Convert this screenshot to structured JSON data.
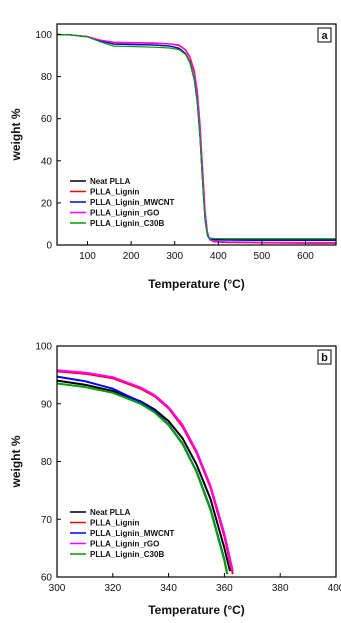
{
  "chart_data": [
    {
      "type": "line",
      "panel_label": "a",
      "xlabel": "Temperature (°C)",
      "ylabel": "weight %",
      "xlim": [
        30,
        670
      ],
      "ylim": [
        0,
        105
      ],
      "xticks": [
        100,
        200,
        300,
        400,
        500,
        600
      ],
      "yticks": [
        0,
        20,
        40,
        60,
        80,
        100
      ],
      "legend_position": "bottom-left",
      "series": [
        {
          "name": "Neat PLLA",
          "color": "#000000",
          "x": [
            30,
            60,
            100,
            130,
            160,
            200,
            250,
            290,
            310,
            325,
            335,
            345,
            352,
            358,
            362,
            366,
            370,
            375,
            380,
            390,
            420,
            500,
            600,
            670
          ],
          "y": [
            100,
            99.8,
            99,
            97,
            95.5,
            95.3,
            95,
            94.5,
            93.5,
            91,
            87,
            79,
            68,
            52,
            38,
            24,
            12,
            5,
            3,
            2.6,
            2.5,
            2.5,
            2.5,
            2.5
          ]
        },
        {
          "name": "PLLA_Lignin",
          "color": "#ff0000",
          "x": [
            30,
            60,
            100,
            130,
            160,
            200,
            250,
            290,
            310,
            325,
            335,
            345,
            352,
            358,
            362,
            366,
            370,
            375,
            380,
            390,
            420,
            500,
            600,
            670
          ],
          "y": [
            100,
            99.8,
            99,
            97.3,
            96.2,
            96,
            95.8,
            95.5,
            94.8,
            92.5,
            89,
            82,
            72,
            57,
            43,
            29,
            15,
            6,
            2.5,
            1.5,
            1.2,
            1,
            0.8,
            0.8
          ]
        },
        {
          "name": "PLLA_Lignin_MWCNT",
          "color": "#0000ff",
          "x": [
            30,
            60,
            100,
            130,
            160,
            200,
            250,
            290,
            310,
            325,
            335,
            345,
            352,
            358,
            362,
            366,
            370,
            375,
            380,
            390,
            420,
            500,
            600,
            670
          ],
          "y": [
            100,
            99.8,
            99,
            97,
            95.4,
            95.2,
            95,
            94.5,
            93.3,
            90.8,
            86.5,
            78.5,
            67,
            51,
            37,
            23,
            11,
            4.5,
            2.8,
            2.4,
            2.3,
            2.2,
            2.2,
            2.2
          ]
        },
        {
          "name": "PLLA_Lignin_rGO",
          "color": "#ff00ff",
          "x": [
            30,
            60,
            100,
            130,
            160,
            200,
            250,
            290,
            310,
            325,
            335,
            345,
            352,
            358,
            362,
            366,
            370,
            375,
            380,
            390,
            420,
            500,
            600,
            670
          ],
          "y": [
            100,
            99.8,
            99,
            97.3,
            96.4,
            96.2,
            96,
            95.6,
            95,
            92.8,
            89.5,
            83,
            73,
            58,
            44,
            30,
            16,
            6.5,
            2.5,
            1.8,
            1.5,
            1.3,
            1.2,
            1.2
          ]
        },
        {
          "name": "PLLA_Lignin_C30B",
          "color": "#00a000",
          "x": [
            30,
            60,
            100,
            130,
            160,
            200,
            250,
            290,
            310,
            325,
            335,
            345,
            352,
            358,
            362,
            366,
            370,
            375,
            380,
            390,
            420,
            500,
            600,
            670
          ],
          "y": [
            100,
            99.8,
            98.8,
            96.5,
            94.5,
            94.3,
            94,
            93.6,
            92.8,
            90.5,
            86.5,
            79,
            67.5,
            51.5,
            37.5,
            23.5,
            11.5,
            5,
            3.3,
            3.1,
            3,
            3,
            3,
            3
          ]
        }
      ]
    },
    {
      "type": "line",
      "panel_label": "b",
      "xlabel": "Temperature (°C)",
      "ylabel": "weight %",
      "xlim": [
        300,
        400
      ],
      "ylim": [
        60,
        100
      ],
      "xticks": [
        300,
        320,
        340,
        360,
        380,
        400
      ],
      "yticks": [
        60,
        70,
        80,
        90,
        100
      ],
      "legend_position": "bottom-left",
      "series": [
        {
          "name": "Neat PLLA",
          "color": "#000000",
          "x": [
            300,
            310,
            320,
            330,
            335,
            340,
            345,
            350,
            355,
            360,
            362
          ],
          "y": [
            94,
            93.3,
            92.2,
            90.4,
            89,
            87,
            84,
            79.5,
            73.5,
            65,
            61
          ]
        },
        {
          "name": "PLLA_Lignin",
          "color": "#ff0000",
          "x": [
            300,
            310,
            320,
            330,
            335,
            340,
            345,
            350,
            355,
            360,
            363
          ],
          "y": [
            95.6,
            95.2,
            94.4,
            92.6,
            91.3,
            89.2,
            86,
            81.5,
            75.5,
            67,
            60.5
          ]
        },
        {
          "name": "PLLA_Lignin_MWCNT",
          "color": "#0000ff",
          "x": [
            300,
            310,
            320,
            330,
            335,
            340,
            345,
            350,
            355,
            360,
            361
          ],
          "y": [
            94.7,
            93.9,
            92.6,
            90.3,
            88.7,
            86.4,
            83.1,
            78.3,
            71.8,
            63,
            60.5
          ]
        },
        {
          "name": "PLLA_Lignin_rGO",
          "color": "#ff00ff",
          "x": [
            300,
            310,
            320,
            330,
            335,
            340,
            345,
            350,
            355,
            360,
            363
          ],
          "y": [
            95.8,
            95.4,
            94.6,
            92.8,
            91.5,
            89.4,
            86.3,
            81.8,
            75.8,
            67.5,
            61
          ]
        },
        {
          "name": "PLLA_Lignin_C30B",
          "color": "#00a000",
          "x": [
            300,
            310,
            320,
            330,
            335,
            340,
            345,
            350,
            355,
            360,
            361
          ],
          "y": [
            93.5,
            92.9,
            91.9,
            90,
            88.5,
            86.3,
            83,
            78.2,
            71.6,
            62.8,
            60.5
          ]
        }
      ]
    }
  ]
}
